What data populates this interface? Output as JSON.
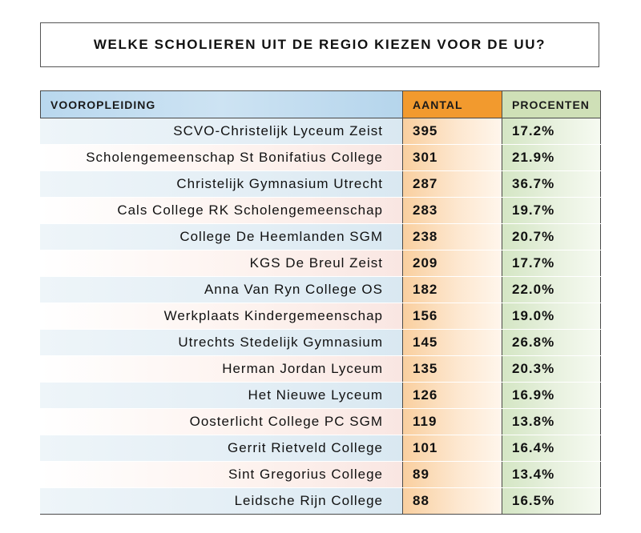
{
  "title": "WELKE SCHOLIEREN UIT DE REGIO KIEZEN VOOR DE UU?",
  "chart_data": {
    "type": "table",
    "title": "WELKE SCHOLIEREN UIT DE REGIO KIEZEN VOOR DE UU?",
    "columns": [
      "VOOROPLEIDING",
      "AANTAL",
      "PROCENTEN"
    ],
    "rows": [
      {
        "school": "SCVO-Christelijk Lyceum Zeist",
        "aantal": "395",
        "procent": "17.2%"
      },
      {
        "school": "Scholengemeenschap St Bonifatius College",
        "aantal": "301",
        "procent": "21.9%"
      },
      {
        "school": "Christelijk Gymnasium Utrecht",
        "aantal": "287",
        "procent": "36.7%"
      },
      {
        "school": "Cals College RK Scholengemeenschap",
        "aantal": "283",
        "procent": "19.7%"
      },
      {
        "school": "College De Heemlanden SGM",
        "aantal": "238",
        "procent": "20.7%"
      },
      {
        "school": "KGS De Breul Zeist",
        "aantal": "209",
        "procent": "17.7%"
      },
      {
        "school": "Anna Van Ryn College OS",
        "aantal": "182",
        "procent": "22.0%"
      },
      {
        "school": "Werkplaats Kindergemeenschap",
        "aantal": "156",
        "procent": "19.0%"
      },
      {
        "school": "Utrechts Stedelijk Gymnasium",
        "aantal": "145",
        "procent": "26.8%"
      },
      {
        "school": "Herman Jordan Lyceum",
        "aantal": "135",
        "procent": "20.3%"
      },
      {
        "school": "Het Nieuwe Lyceum",
        "aantal": "126",
        "procent": "16.9%"
      },
      {
        "school": "Oosterlicht College PC SGM",
        "aantal": "119",
        "procent": "13.8%"
      },
      {
        "school": "Gerrit Rietveld College",
        "aantal": "101",
        "procent": "16.4%"
      },
      {
        "school": "Sint Gregorius College",
        "aantal": "89",
        "procent": "13.4%"
      },
      {
        "school": "Leidsche Rijn College",
        "aantal": "88",
        "procent": "16.5%"
      }
    ],
    "colors": {
      "header_school": "#b9d8ee",
      "header_aantal": "#f29a2e",
      "header_procenten": "#cfe0b7"
    }
  }
}
